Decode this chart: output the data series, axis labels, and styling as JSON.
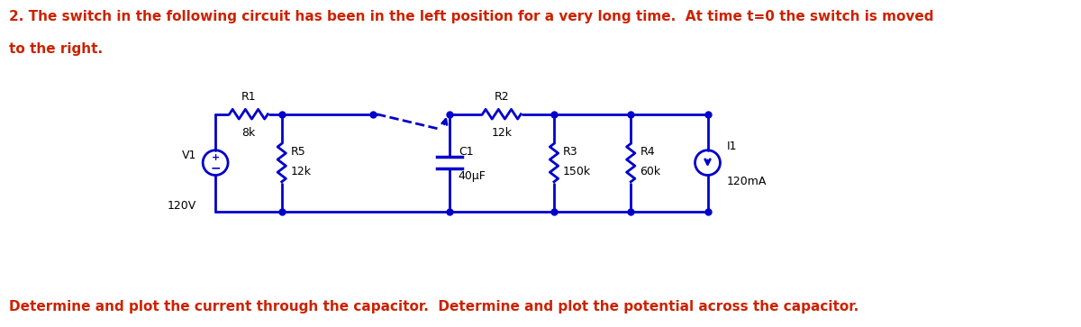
{
  "title_line1": "2. The switch in the following circuit has been in the left position for a very long time.  At time t=0 the switch is moved",
  "title_line2": "to the right.",
  "footer": "Determine and plot the current through the capacitor.  Determine and plot the potential across the capacitor.",
  "title_color": "#cc2200",
  "footer_color": "#cc2200",
  "circuit_color": "#0000cc",
  "bg_color": "#ffffff",
  "font_size_title": 11,
  "font_size_footer": 11,
  "labels": {
    "V1": "V1",
    "V1_val": "120V",
    "R1": "R1",
    "R1_val": "8k",
    "R2": "R2",
    "R2_val": "12k",
    "R3": "R3",
    "R3_val": "150k",
    "R4": "R4",
    "R4_val": "60k",
    "R5": "R5",
    "R5_val": "12k",
    "C1": "C1",
    "C1_val": "40μF",
    "I1": "I1",
    "I1_val": "120mA"
  }
}
